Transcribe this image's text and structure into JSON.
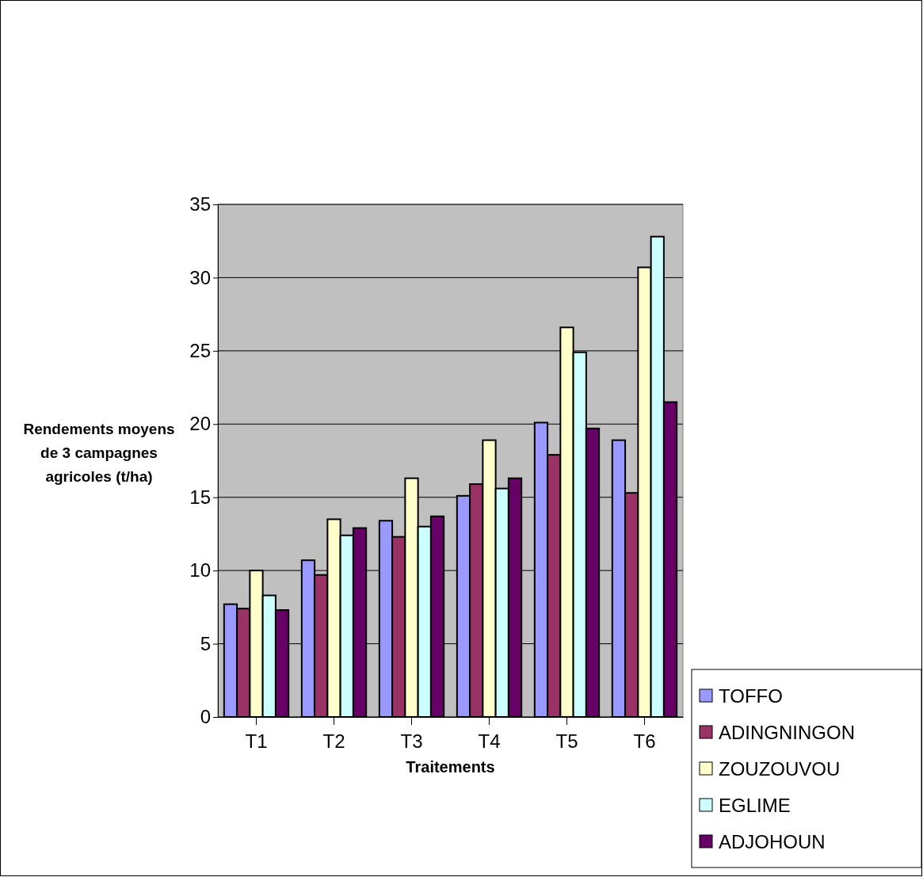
{
  "chart_data": {
    "type": "bar",
    "xlabel": "Traitements",
    "ylabel": "Rendements moyens de 3 campagnes agricoles (t/ha)",
    "categories": [
      "T1",
      "T2",
      "T3",
      "T4",
      "T5",
      "T6"
    ],
    "series": [
      {
        "name": "TOFFO",
        "color": "#9999ff",
        "values": [
          7.7,
          10.7,
          13.4,
          15.1,
          20.1,
          18.9
        ]
      },
      {
        "name": "ADINGNINGON",
        "color": "#993366",
        "values": [
          7.4,
          9.7,
          12.3,
          15.9,
          17.9,
          15.3
        ]
      },
      {
        "name": "ZOUZOUVOU",
        "color": "#ffffcc",
        "values": [
          10.0,
          13.5,
          16.3,
          18.9,
          26.6,
          30.7
        ]
      },
      {
        "name": "EGLIME",
        "color": "#ccffff",
        "values": [
          8.3,
          12.4,
          13.0,
          15.6,
          24.9,
          32.8
        ]
      },
      {
        "name": "ADJOHOUN",
        "color": "#660066",
        "values": [
          7.3,
          12.9,
          13.7,
          16.3,
          19.7,
          21.5
        ]
      }
    ],
    "ylim": [
      0,
      35
    ],
    "yticks": [
      0,
      5,
      10,
      15,
      20,
      25,
      30,
      35
    ],
    "grid": "y",
    "legend": "bottom right"
  }
}
